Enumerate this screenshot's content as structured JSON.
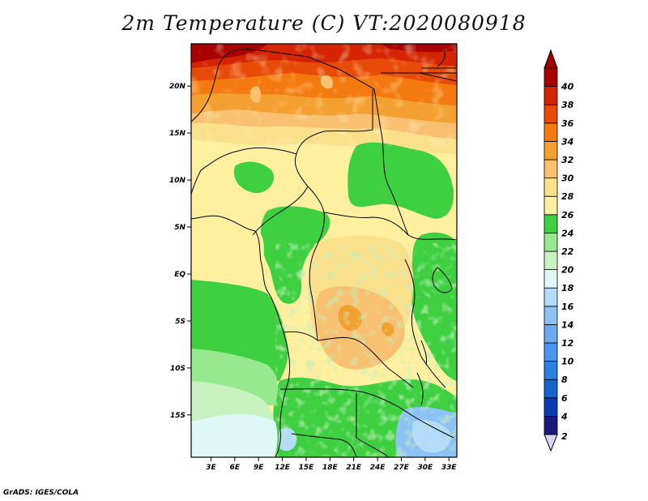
{
  "title": "2m Temperature (C) VT:2020080918",
  "footer": "GrADS: IGES/COLA",
  "map": {
    "lat_range": [
      -19.5,
      24.5
    ],
    "lon_range": [
      0.5,
      34
    ],
    "lat_ticks": [
      {
        "value": 20,
        "label": "20N"
      },
      {
        "value": 15,
        "label": "15N"
      },
      {
        "value": 10,
        "label": "10N"
      },
      {
        "value": 5,
        "label": "5N"
      },
      {
        "value": 0,
        "label": "EQ"
      },
      {
        "value": -5,
        "label": "5S"
      },
      {
        "value": -10,
        "label": "10S"
      },
      {
        "value": -15,
        "label": "15S"
      }
    ],
    "lon_ticks": [
      {
        "value": 3,
        "label": "3E"
      },
      {
        "value": 6,
        "label": "6E"
      },
      {
        "value": 9,
        "label": "9E"
      },
      {
        "value": 12,
        "label": "12E"
      },
      {
        "value": 15,
        "label": "15E"
      },
      {
        "value": 18,
        "label": "18E"
      },
      {
        "value": 21,
        "label": "21E"
      },
      {
        "value": 24,
        "label": "24E"
      },
      {
        "value": 27,
        "label": "27E"
      },
      {
        "value": 30,
        "label": "30E"
      },
      {
        "value": 33,
        "label": "33E"
      }
    ]
  },
  "colorbar": {
    "levels": [
      "2",
      "4",
      "6",
      "8",
      "10",
      "12",
      "14",
      "16",
      "18",
      "20",
      "22",
      "24",
      "26",
      "28",
      "30",
      "32",
      "34",
      "36",
      "38",
      "40"
    ],
    "colors": [
      "#1b1b7f",
      "#0d3bb0",
      "#1565d0",
      "#2b7fe0",
      "#4a95ee",
      "#6aaaf0",
      "#8cc2f5",
      "#b4dcfa",
      "#e0f7f7",
      "#c8f3c0",
      "#98e890",
      "#3ed040",
      "#fff0a0",
      "#fbe08c",
      "#f8c070",
      "#f4a030",
      "#f47a10",
      "#e84a08",
      "#d42404",
      "#aa0202"
    ],
    "under_color": "#dcd4f4",
    "over_color": "#a00000"
  }
}
